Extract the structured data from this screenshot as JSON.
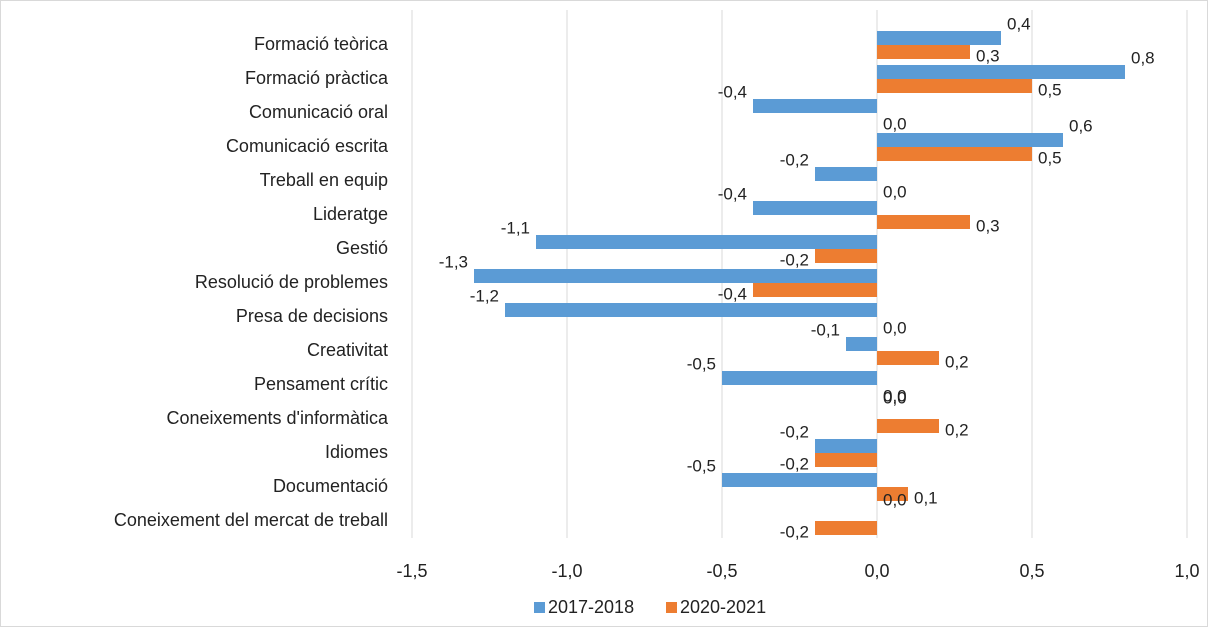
{
  "chart_data": {
    "type": "bar",
    "orientation": "horizontal",
    "categories": [
      "Formació teòrica",
      "Formació pràctica",
      "Comunicació oral",
      "Comunicació escrita",
      "Treball en equip",
      "Lideratge",
      "Gestió",
      "Resolució de problemes",
      "Presa de decisions",
      "Creativitat",
      "Pensament crític",
      "Coneixements d'informàtica",
      "Idiomes",
      "Documentació",
      "Coneixement del mercat de treball"
    ],
    "series": [
      {
        "name": "2017-2018",
        "color": "#5b9bd5",
        "values": [
          0.4,
          0.8,
          -0.4,
          0.6,
          -0.2,
          -0.4,
          -1.1,
          -1.3,
          -1.2,
          -0.1,
          -0.5,
          0.0,
          -0.2,
          -0.5,
          0.0
        ],
        "value_labels": [
          "0,4",
          "0,8",
          "-0,4",
          "0,6",
          "-0,2",
          "-0,4",
          "-1,1",
          "-1,3",
          "-1,2",
          "-0,1",
          "-0,5",
          "0,0",
          "-0,2",
          "-0,5",
          "0,0"
        ]
      },
      {
        "name": "2020-2021",
        "color": "#ed7d31",
        "values": [
          0.3,
          0.5,
          0.0,
          0.5,
          0.0,
          0.3,
          -0.2,
          -0.4,
          0.0,
          0.2,
          0.0,
          0.2,
          -0.2,
          0.1,
          -0.2
        ],
        "value_labels": [
          "0,3",
          "0,5",
          "0,0",
          "0,5",
          "0,0",
          "0,3",
          "-0,2",
          "-0,4",
          "0,0",
          "0,2",
          "0,0",
          "0,2",
          "-0,2",
          "0,1",
          "-0,2"
        ]
      }
    ],
    "xlim": [
      -1.5,
      1.0
    ],
    "xticks": [
      {
        "value": -1.5,
        "label": "-1,5"
      },
      {
        "value": -1.0,
        "label": "-1,0"
      },
      {
        "value": -0.5,
        "label": "-0,5"
      },
      {
        "value": 0.0,
        "label": "0,0"
      },
      {
        "value": 0.5,
        "label": "0,5"
      },
      {
        "value": 1.0,
        "label": "1,0"
      }
    ],
    "grid": true,
    "legend": "bottom"
  }
}
